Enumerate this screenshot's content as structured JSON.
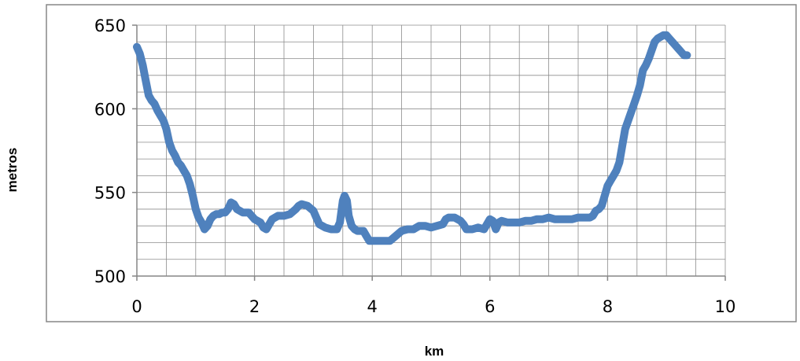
{
  "chart_data": {
    "type": "line",
    "title": "",
    "xlabel": "km",
    "ylabel": "metros",
    "xlim": [
      0,
      10
    ],
    "ylim": [
      500,
      650
    ],
    "xticks": [
      "0",
      "2",
      "4",
      "6",
      "8",
      "10"
    ],
    "yticks": [
      "500",
      "550",
      "600",
      "650"
    ],
    "grid": true,
    "legend": "none",
    "series": [
      {
        "color": "#4f81bd",
        "points": [
          [
            0.0,
            637
          ],
          [
            0.05,
            633
          ],
          [
            0.1,
            626
          ],
          [
            0.15,
            617
          ],
          [
            0.2,
            608
          ],
          [
            0.25,
            605
          ],
          [
            0.3,
            603
          ],
          [
            0.35,
            599
          ],
          [
            0.4,
            596
          ],
          [
            0.45,
            593
          ],
          [
            0.5,
            588
          ],
          [
            0.55,
            580
          ],
          [
            0.6,
            575
          ],
          [
            0.65,
            572
          ],
          [
            0.7,
            568
          ],
          [
            0.75,
            566
          ],
          [
            0.8,
            563
          ],
          [
            0.85,
            560
          ],
          [
            0.9,
            555
          ],
          [
            0.95,
            548
          ],
          [
            1.0,
            540
          ],
          [
            1.05,
            535
          ],
          [
            1.1,
            532
          ],
          [
            1.15,
            528
          ],
          [
            1.2,
            530
          ],
          [
            1.25,
            534
          ],
          [
            1.3,
            536
          ],
          [
            1.35,
            537
          ],
          [
            1.4,
            537
          ],
          [
            1.45,
            538
          ],
          [
            1.5,
            538
          ],
          [
            1.55,
            540
          ],
          [
            1.6,
            544
          ],
          [
            1.65,
            543
          ],
          [
            1.7,
            540
          ],
          [
            1.8,
            538
          ],
          [
            1.9,
            538
          ],
          [
            2.0,
            534
          ],
          [
            2.1,
            532
          ],
          [
            2.15,
            529
          ],
          [
            2.2,
            528
          ],
          [
            2.25,
            531
          ],
          [
            2.3,
            534
          ],
          [
            2.4,
            536
          ],
          [
            2.5,
            536
          ],
          [
            2.6,
            537
          ],
          [
            2.7,
            540
          ],
          [
            2.75,
            542
          ],
          [
            2.8,
            543
          ],
          [
            2.9,
            542
          ],
          [
            3.0,
            539
          ],
          [
            3.05,
            535
          ],
          [
            3.1,
            531
          ],
          [
            3.2,
            529
          ],
          [
            3.3,
            528
          ],
          [
            3.4,
            528
          ],
          [
            3.45,
            532
          ],
          [
            3.5,
            545
          ],
          [
            3.53,
            548
          ],
          [
            3.57,
            545
          ],
          [
            3.6,
            536
          ],
          [
            3.65,
            530
          ],
          [
            3.7,
            528
          ],
          [
            3.75,
            527
          ],
          [
            3.8,
            527
          ],
          [
            3.85,
            527
          ],
          [
            3.9,
            524
          ],
          [
            3.95,
            521
          ],
          [
            4.0,
            521
          ],
          [
            4.1,
            521
          ],
          [
            4.2,
            521
          ],
          [
            4.3,
            521
          ],
          [
            4.4,
            524
          ],
          [
            4.5,
            527
          ],
          [
            4.6,
            528
          ],
          [
            4.7,
            528
          ],
          [
            4.8,
            530
          ],
          [
            4.9,
            530
          ],
          [
            5.0,
            529
          ],
          [
            5.1,
            530
          ],
          [
            5.2,
            531
          ],
          [
            5.25,
            534
          ],
          [
            5.3,
            535
          ],
          [
            5.4,
            535
          ],
          [
            5.5,
            533
          ],
          [
            5.55,
            531
          ],
          [
            5.6,
            528
          ],
          [
            5.65,
            528
          ],
          [
            5.7,
            528
          ],
          [
            5.8,
            529
          ],
          [
            5.9,
            528
          ],
          [
            6.0,
            534
          ],
          [
            6.05,
            533
          ],
          [
            6.1,
            528
          ],
          [
            6.15,
            532
          ],
          [
            6.2,
            533
          ],
          [
            6.3,
            532
          ],
          [
            6.4,
            532
          ],
          [
            6.5,
            532
          ],
          [
            6.6,
            533
          ],
          [
            6.7,
            533
          ],
          [
            6.8,
            534
          ],
          [
            6.9,
            534
          ],
          [
            7.0,
            535
          ],
          [
            7.1,
            534
          ],
          [
            7.2,
            534
          ],
          [
            7.3,
            534
          ],
          [
            7.4,
            534
          ],
          [
            7.5,
            535
          ],
          [
            7.6,
            535
          ],
          [
            7.7,
            535
          ],
          [
            7.75,
            536
          ],
          [
            7.8,
            539
          ],
          [
            7.85,
            540
          ],
          [
            7.9,
            542
          ],
          [
            7.95,
            548
          ],
          [
            8.0,
            554
          ],
          [
            8.05,
            557
          ],
          [
            8.1,
            560
          ],
          [
            8.15,
            563
          ],
          [
            8.2,
            568
          ],
          [
            8.25,
            578
          ],
          [
            8.3,
            588
          ],
          [
            8.35,
            593
          ],
          [
            8.4,
            598
          ],
          [
            8.45,
            603
          ],
          [
            8.5,
            608
          ],
          [
            8.55,
            614
          ],
          [
            8.6,
            623
          ],
          [
            8.65,
            626
          ],
          [
            8.7,
            630
          ],
          [
            8.75,
            635
          ],
          [
            8.8,
            640
          ],
          [
            8.85,
            642
          ],
          [
            8.9,
            643
          ],
          [
            8.95,
            644
          ],
          [
            9.0,
            644
          ],
          [
            9.05,
            642
          ],
          [
            9.1,
            640
          ],
          [
            9.15,
            638
          ],
          [
            9.2,
            636
          ],
          [
            9.25,
            634
          ],
          [
            9.3,
            632
          ],
          [
            9.35,
            632
          ]
        ]
      }
    ]
  }
}
